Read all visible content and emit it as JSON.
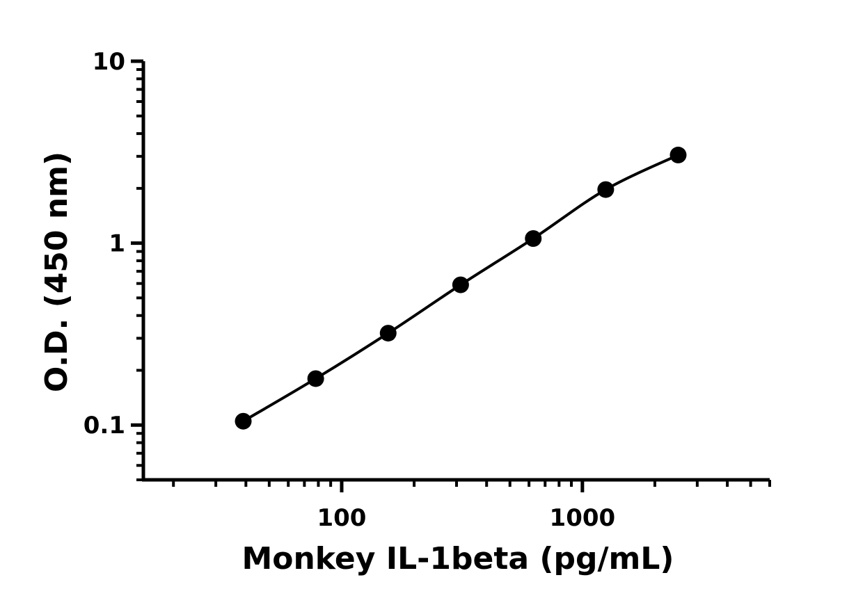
{
  "chart_data": {
    "type": "scatter",
    "title": "",
    "xlabel": "Monkey IL-1beta (pg/mL)",
    "ylabel": "O.D. (450 nm)",
    "xscale": "log",
    "yscale": "log",
    "xlim": [
      15,
      6000
    ],
    "ylim": [
      0.05,
      10
    ],
    "x_ticks": [
      {
        "value": 100,
        "label": "100"
      },
      {
        "value": 1000,
        "label": "1000"
      }
    ],
    "y_ticks": [
      {
        "value": 0.1,
        "label": "0.1"
      },
      {
        "value": 1,
        "label": "1"
      },
      {
        "value": 10,
        "label": "10"
      }
    ],
    "grid": false,
    "legend": "none",
    "series": [
      {
        "x": [
          39,
          78,
          156,
          312,
          625,
          1250,
          2500
        ],
        "y": [
          0.105,
          0.18,
          0.32,
          0.59,
          1.06,
          1.97,
          3.05
        ],
        "marker": "circle",
        "color": "#000000",
        "fit_line": true
      }
    ]
  }
}
